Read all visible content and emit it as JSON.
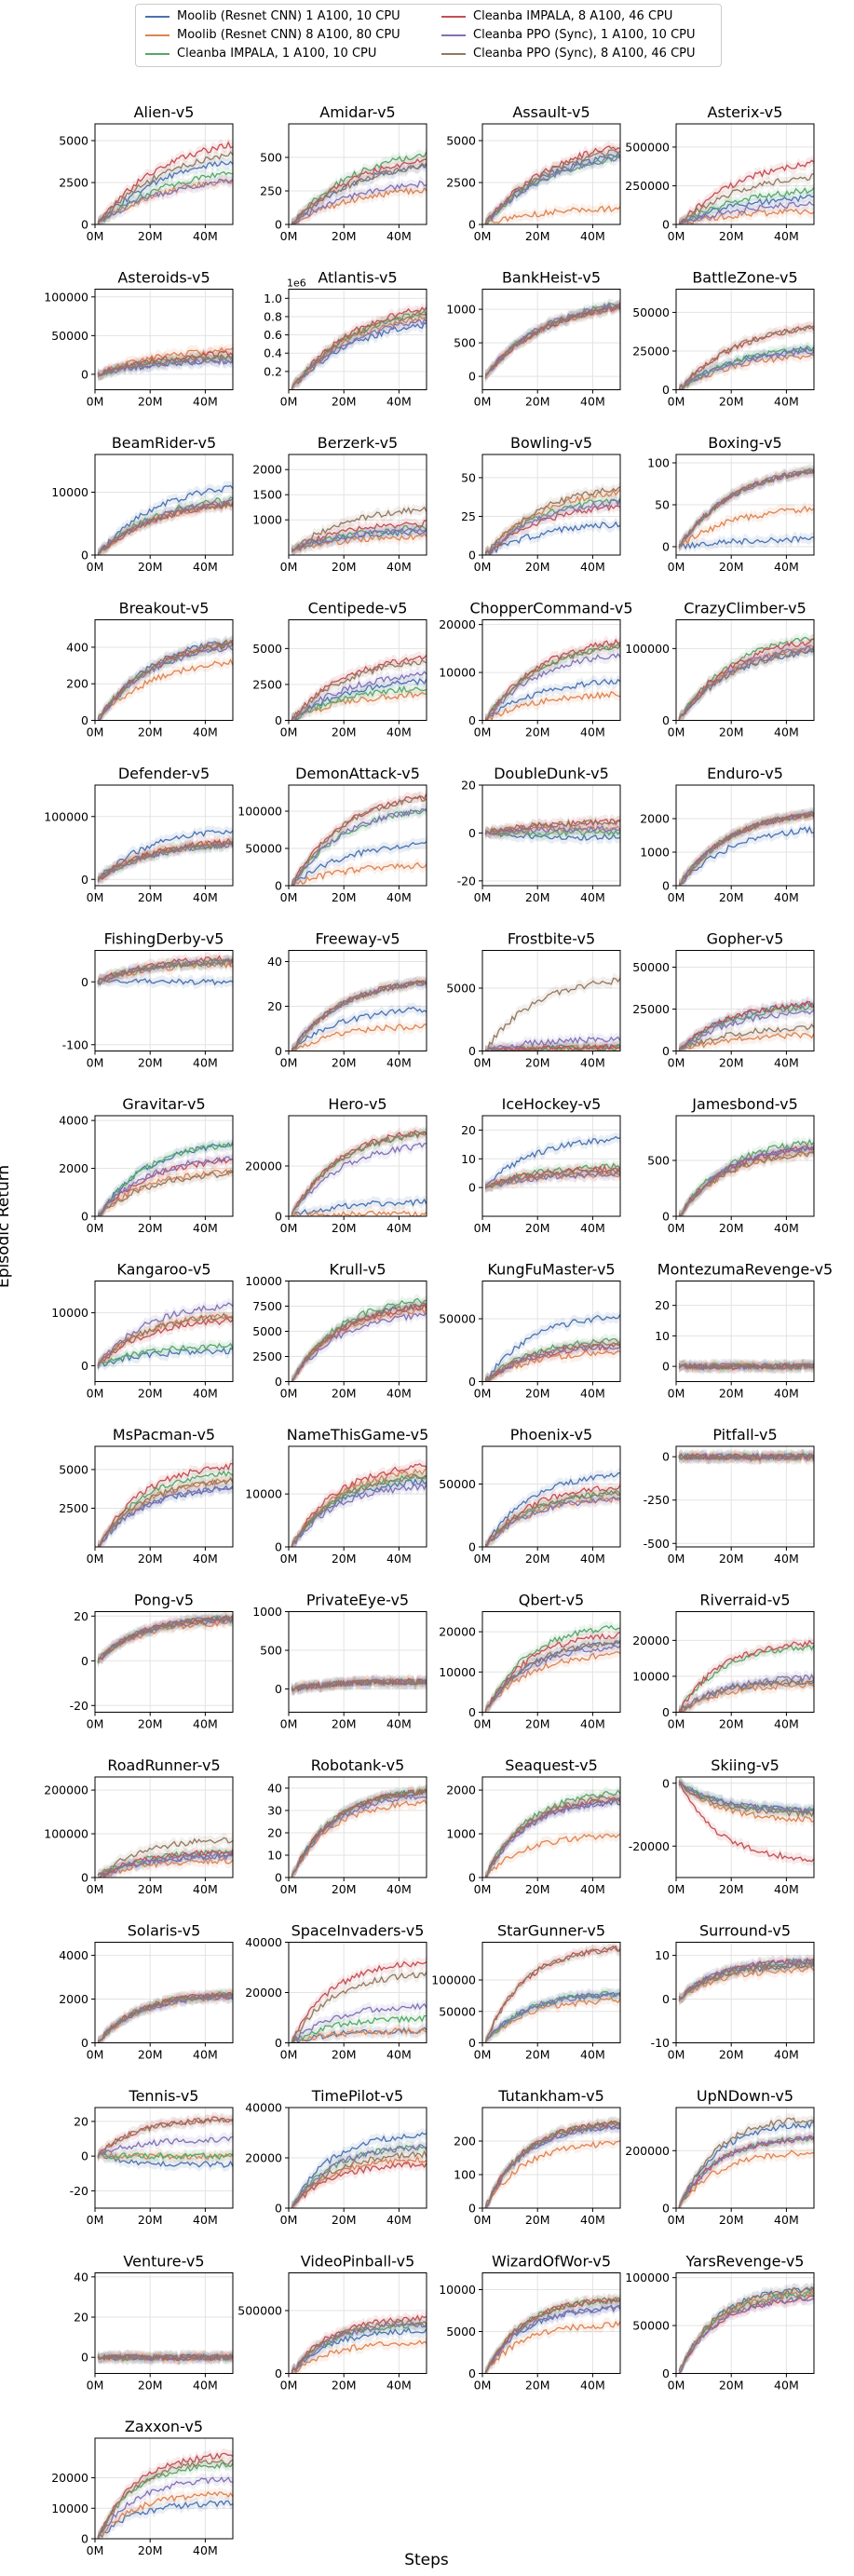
{
  "legend": {
    "entries": [
      {
        "label": "Moolib (Resnet CNN) 1 A100, 10 CPU",
        "color": "#4C72B0"
      },
      {
        "label": "Moolib (Resnet CNN) 8 A100, 80 CPU",
        "color": "#DD8452"
      },
      {
        "label": "Cleanba IMPALA, 1 A100, 10 CPU",
        "color": "#55A868"
      },
      {
        "label": "Cleanba IMPALA, 8 A100, 46 CPU",
        "color": "#C44E52"
      },
      {
        "label": "Cleanba PPO (Sync), 1 A100, 10 CPU",
        "color": "#8172B3"
      },
      {
        "label": "Cleanba PPO (Sync), 8 A100, 46 CPU",
        "color": "#937860"
      }
    ]
  },
  "ylabel": "Episodic Return",
  "xlabel": "Steps",
  "chart_data": {
    "type": "line",
    "x_ticks": [
      "0M",
      "20M",
      "40M"
    ],
    "x_range_millions": [
      0,
      50
    ],
    "grid": true,
    "legend_position": "top-center",
    "panels": [
      {
        "title": "Alien-v5",
        "y_ticks": [
          "0",
          "2500",
          "5000"
        ],
        "ylim": [
          0,
          6000
        ],
        "finals": [
          4300,
          3000,
          3500,
          5500,
          3000,
          4800
        ]
      },
      {
        "title": "Amidar-v5",
        "y_ticks": [
          "0",
          "250",
          "500"
        ],
        "ylim": [
          0,
          750
        ],
        "finals": [
          500,
          300,
          600,
          550,
          350,
          500
        ]
      },
      {
        "title": "Assault-v5",
        "y_ticks": [
          "0",
          "2500",
          "5000"
        ],
        "ylim": [
          0,
          6000
        ],
        "finals": [
          4700,
          1100,
          4500,
          5300,
          4500,
          5000
        ]
      },
      {
        "title": "Asterix-v5",
        "y_ticks": [
          "0",
          "250000",
          "500000"
        ],
        "ylim": [
          0,
          650000
        ],
        "finals": [
          200000,
          100000,
          250000,
          450000,
          150000,
          350000
        ]
      },
      {
        "title": "Asteroids-v5",
        "y_ticks": [
          "0",
          "50000",
          "100000"
        ],
        "ylim": [
          -20000,
          110000
        ],
        "finals": [
          20000,
          35000,
          25000,
          30000,
          20000,
          25000
        ]
      },
      {
        "title": "Atlantis-v5",
        "y_ticks": [
          "0.2",
          "0.4",
          "0.6",
          "0.8",
          "1.0"
        ],
        "ylim": [
          0,
          1.1
        ],
        "y_multiplier": "1e6",
        "finals": [
          0.8,
          0.9,
          0.95,
          1.0,
          0.85,
          0.95
        ]
      },
      {
        "title": "BankHeist-v5",
        "y_ticks": [
          "0",
          "500",
          "1000"
        ],
        "ylim": [
          -200,
          1300
        ],
        "finals": [
          1150,
          1150,
          1200,
          1150,
          1200,
          1150
        ]
      },
      {
        "title": "BattleZone-v5",
        "y_ticks": [
          "0",
          "25000",
          "50000"
        ],
        "ylim": [
          0,
          65000
        ],
        "finals": [
          30000,
          25000,
          30000,
          45000,
          28000,
          45000
        ]
      },
      {
        "title": "BeamRider-v5",
        "y_ticks": [
          "0",
          "10000"
        ],
        "ylim": [
          0,
          16000
        ],
        "finals": [
          12000,
          9000,
          10000,
          9000,
          9500,
          9000
        ]
      },
      {
        "title": "Berzerk-v5",
        "y_ticks": [
          "1000",
          "1500",
          "2000"
        ],
        "ylim": [
          300,
          2300
        ],
        "finals": [
          800,
          700,
          900,
          1000,
          850,
          1300
        ]
      },
      {
        "title": "Bowling-v5",
        "y_ticks": [
          "0",
          "25",
          "50"
        ],
        "ylim": [
          0,
          65
        ],
        "finals": [
          22,
          45,
          40,
          35,
          38,
          48
        ]
      },
      {
        "title": "Boxing-v5",
        "y_ticks": [
          "0",
          "50",
          "100"
        ],
        "ylim": [
          -10,
          110
        ],
        "finals": [
          10,
          50,
          100,
          100,
          100,
          100
        ]
      },
      {
        "title": "Breakout-v5",
        "y_ticks": [
          "0",
          "200",
          "400"
        ],
        "ylim": [
          0,
          550
        ],
        "finals": [
          480,
          350,
          450,
          460,
          440,
          470
        ]
      },
      {
        "title": "Centipede-v5",
        "y_ticks": [
          "0",
          "2500",
          "5000"
        ],
        "ylim": [
          0,
          7000
        ],
        "finals": [
          3000,
          2000,
          2500,
          4800,
          3500,
          4500
        ]
      },
      {
        "title": "ChopperCommand-v5",
        "y_ticks": [
          "0",
          "10000",
          "20000"
        ],
        "ylim": [
          0,
          21000
        ],
        "finals": [
          9000,
          6000,
          17000,
          18000,
          15000,
          17000
        ]
      },
      {
        "title": "CrazyClimber-v5",
        "y_ticks": [
          "0",
          "100000"
        ],
        "ylim": [
          0,
          140000
        ],
        "finals": [
          105000,
          110000,
          125000,
          120000,
          110000,
          105000
        ]
      },
      {
        "title": "Defender-v5",
        "y_ticks": [
          "0",
          "100000"
        ],
        "ylim": [
          -10000,
          150000
        ],
        "finals": [
          85000,
          65000,
          60000,
          65000,
          60000,
          62000
        ]
      },
      {
        "title": "DemonAttack-v5",
        "y_ticks": [
          "0",
          "50000",
          "100000"
        ],
        "ylim": [
          0,
          135000
        ],
        "finals": [
          60000,
          30000,
          110000,
          130000,
          110000,
          128000
        ]
      },
      {
        "title": "DoubleDunk-v5",
        "y_ticks": [
          "-20",
          "0",
          "20"
        ],
        "ylim": [
          -22,
          20
        ],
        "finals": [
          -2,
          2,
          0,
          5,
          2,
          5
        ]
      },
      {
        "title": "Enduro-v5",
        "y_ticks": [
          "0",
          "1000",
          "2000"
        ],
        "ylim": [
          0,
          3000
        ],
        "finals": [
          1800,
          2300,
          2300,
          2300,
          2300,
          2300
        ]
      },
      {
        "title": "FishingDerby-v5",
        "y_ticks": [
          "-100",
          "0"
        ],
        "ylim": [
          -110,
          50
        ],
        "finals": [
          0,
          30,
          35,
          40,
          35,
          35
        ]
      },
      {
        "title": "Freeway-v5",
        "y_ticks": [
          "0",
          "20",
          "40"
        ],
        "ylim": [
          0,
          45
        ],
        "finals": [
          20,
          12,
          33,
          33,
          33,
          33
        ]
      },
      {
        "title": "Frostbite-v5",
        "y_ticks": [
          "0",
          "5000"
        ],
        "ylim": [
          0,
          8000
        ],
        "finals": [
          300,
          300,
          300,
          300,
          1000,
          6000
        ]
      },
      {
        "title": "Gopher-v5",
        "y_ticks": [
          "0",
          "25000",
          "50000"
        ],
        "ylim": [
          0,
          60000
        ],
        "finals": [
          30000,
          10000,
          28000,
          30000,
          25000,
          15000
        ]
      },
      {
        "title": "Gravitar-v5",
        "y_ticks": [
          "0",
          "2000",
          "4000"
        ],
        "ylim": [
          0,
          4200
        ],
        "finals": [
          3200,
          2000,
          3200,
          2500,
          2600,
          1900
        ]
      },
      {
        "title": "Hero-v5",
        "y_ticks": [
          "0",
          "20000"
        ],
        "ylim": [
          0,
          40000
        ],
        "finals": [
          6000,
          1000,
          35000,
          36000,
          30000,
          35000
        ]
      },
      {
        "title": "IceHockey-v5",
        "y_ticks": [
          "0",
          "10",
          "20"
        ],
        "ylim": [
          -10,
          25
        ],
        "finals": [
          18,
          5,
          8,
          7,
          5,
          6
        ]
      },
      {
        "title": "Jamesbond-v5",
        "y_ticks": [
          "0",
          "500"
        ],
        "ylim": [
          0,
          900
        ],
        "finals": [
          650,
          600,
          700,
          650,
          650,
          600
        ]
      },
      {
        "title": "Kangaroo-v5",
        "y_ticks": [
          "0",
          "10000"
        ],
        "ylim": [
          -3000,
          16000
        ],
        "finals": [
          3000,
          10000,
          4000,
          9000,
          12000,
          10000
        ]
      },
      {
        "title": "Krull-v5",
        "y_ticks": [
          "0",
          "2500",
          "5000",
          "7500",
          "10000"
        ],
        "ylim": [
          0,
          10000
        ],
        "finals": [
          8000,
          7500,
          8500,
          7800,
          7000,
          8000
        ]
      },
      {
        "title": "KungFuMaster-v5",
        "y_ticks": [
          "0",
          "50000"
        ],
        "ylim": [
          0,
          80000
        ],
        "finals": [
          55000,
          25000,
          35000,
          30000,
          30000,
          32000
        ]
      },
      {
        "title": "MontezumaRevenge-v5",
        "y_ticks": [
          "0",
          "10",
          "20"
        ],
        "ylim": [
          -5,
          28
        ],
        "finals": [
          0,
          0,
          0,
          0,
          0,
          0
        ]
      },
      {
        "title": "MsPacman-v5",
        "y_ticks": [
          "2500",
          "5000"
        ],
        "ylim": [
          0,
          6500
        ],
        "finals": [
          4000,
          4500,
          5000,
          5500,
          4000,
          4500
        ]
      },
      {
        "title": "NameThisGame-v5",
        "y_ticks": [
          "0",
          "10000"
        ],
        "ylim": [
          0,
          19000
        ],
        "finals": [
          13000,
          15000,
          14000,
          16000,
          12000,
          14000
        ]
      },
      {
        "title": "Phoenix-v5",
        "y_ticks": [
          "0",
          "50000"
        ],
        "ylim": [
          0,
          80000
        ],
        "finals": [
          60000,
          40000,
          45000,
          50000,
          40000,
          45000
        ]
      },
      {
        "title": "Pitfall-v5",
        "y_ticks": [
          "-500",
          "-250",
          "0"
        ],
        "ylim": [
          -520,
          60
        ],
        "finals": [
          0,
          -10,
          0,
          0,
          0,
          0
        ]
      },
      {
        "title": "Pong-v5",
        "y_ticks": [
          "-20",
          "0",
          "20"
        ],
        "ylim": [
          -23,
          22
        ],
        "finals": [
          19,
          18,
          20,
          20,
          20,
          20
        ]
      },
      {
        "title": "PrivateEye-v5",
        "y_ticks": [
          "0",
          "500",
          "1000"
        ],
        "ylim": [
          -300,
          1000
        ],
        "finals": [
          100,
          100,
          100,
          100,
          100,
          100
        ]
      },
      {
        "title": "Qbert-v5",
        "y_ticks": [
          "0",
          "10000",
          "20000"
        ],
        "ylim": [
          0,
          25000
        ],
        "finals": [
          18000,
          15000,
          22000,
          20000,
          17000,
          18000
        ]
      },
      {
        "title": "Riverraid-v5",
        "y_ticks": [
          "0",
          "10000",
          "20000"
        ],
        "ylim": [
          0,
          28000
        ],
        "finals": [
          9000,
          8000,
          19000,
          20000,
          10000,
          9000
        ]
      },
      {
        "title": "RoadRunner-v5",
        "y_ticks": [
          "0",
          "100000",
          "200000"
        ],
        "ylim": [
          0,
          230000
        ],
        "finals": [
          50000,
          40000,
          60000,
          60000,
          50000,
          90000
        ]
      },
      {
        "title": "Robotank-v5",
        "y_ticks": [
          "0",
          "10",
          "20",
          "30",
          "40"
        ],
        "ylim": [
          0,
          45
        ],
        "finals": [
          40,
          35,
          40,
          40,
          38,
          40
        ]
      },
      {
        "title": "Seaquest-v5",
        "y_ticks": [
          "0",
          "1000",
          "2000"
        ],
        "ylim": [
          0,
          2300
        ],
        "finals": [
          1800,
          1000,
          2000,
          1850,
          1800,
          1900
        ]
      },
      {
        "title": "Skiing-v5",
        "y_ticks": [
          "-20000",
          "0"
        ],
        "ylim": [
          -30000,
          2000
        ],
        "finals": [
          -9000,
          -12000,
          -9000,
          -25000,
          -9000,
          -10000
        ]
      },
      {
        "title": "Solaris-v5",
        "y_ticks": [
          "0",
          "2000",
          "4000"
        ],
        "ylim": [
          0,
          4600
        ],
        "finals": [
          2200,
          2200,
          2300,
          2300,
          2200,
          2300
        ]
      },
      {
        "title": "SpaceInvaders-v5",
        "y_ticks": [
          "0",
          "20000",
          "40000"
        ],
        "ylim": [
          0,
          40000
        ],
        "finals": [
          5000,
          5000,
          10000,
          33000,
          15000,
          28000
        ]
      },
      {
        "title": "StarGunner-v5",
        "y_ticks": [
          "0",
          "50000",
          "100000"
        ],
        "ylim": [
          0,
          160000
        ],
        "finals": [
          80000,
          70000,
          80000,
          155000,
          80000,
          155000
        ]
      },
      {
        "title": "Surround-v5",
        "y_ticks": [
          "-10",
          "0",
          "10"
        ],
        "ylim": [
          -10,
          13
        ],
        "finals": [
          8,
          7,
          9,
          9,
          9,
          8
        ]
      },
      {
        "title": "Tennis-v5",
        "y_ticks": [
          "-20",
          "0",
          "20"
        ],
        "ylim": [
          -30,
          28
        ],
        "finals": [
          -5,
          0,
          0,
          22,
          10,
          22
        ]
      },
      {
        "title": "TimePilot-v5",
        "y_ticks": [
          "0",
          "20000",
          "40000"
        ],
        "ylim": [
          0,
          40000
        ],
        "finals": [
          30000,
          20000,
          25000,
          18000,
          25000,
          22000
        ]
      },
      {
        "title": "Tutankham-v5",
        "y_ticks": [
          "0",
          "100",
          "200"
        ],
        "ylim": [
          0,
          300
        ],
        "finals": [
          250,
          200,
          260,
          260,
          250,
          260
        ]
      },
      {
        "title": "UpNDown-v5",
        "y_ticks": [
          "0",
          "200000"
        ],
        "ylim": [
          0,
          350000
        ],
        "finals": [
          300000,
          200000,
          250000,
          250000,
          250000,
          320000
        ]
      },
      {
        "title": "Venture-v5",
        "y_ticks": [
          "0",
          "20",
          "40"
        ],
        "ylim": [
          -8,
          42
        ],
        "finals": [
          0,
          0,
          0,
          0,
          0,
          0
        ]
      },
      {
        "title": "VideoPinball-v5",
        "y_ticks": [
          "0",
          "500000"
        ],
        "ylim": [
          0,
          800000
        ],
        "finals": [
          350000,
          250000,
          400000,
          450000,
          400000,
          420000
        ]
      },
      {
        "title": "WizardOfWor-v5",
        "y_ticks": [
          "0",
          "5000",
          "10000"
        ],
        "ylim": [
          0,
          12000
        ],
        "finals": [
          8000,
          6000,
          9000,
          9000,
          8000,
          9000
        ]
      },
      {
        "title": "YarsRevenge-v5",
        "y_ticks": [
          "0",
          "50000",
          "100000"
        ],
        "ylim": [
          0,
          105000
        ],
        "finals": [
          90000,
          85000,
          85000,
          80000,
          80000,
          90000
        ]
      },
      {
        "title": "Zaxxon-v5",
        "y_ticks": [
          "0",
          "10000",
          "20000"
        ],
        "ylim": [
          0,
          33000
        ],
        "finals": [
          12000,
          15000,
          25000,
          28000,
          20000,
          26000
        ]
      }
    ]
  }
}
